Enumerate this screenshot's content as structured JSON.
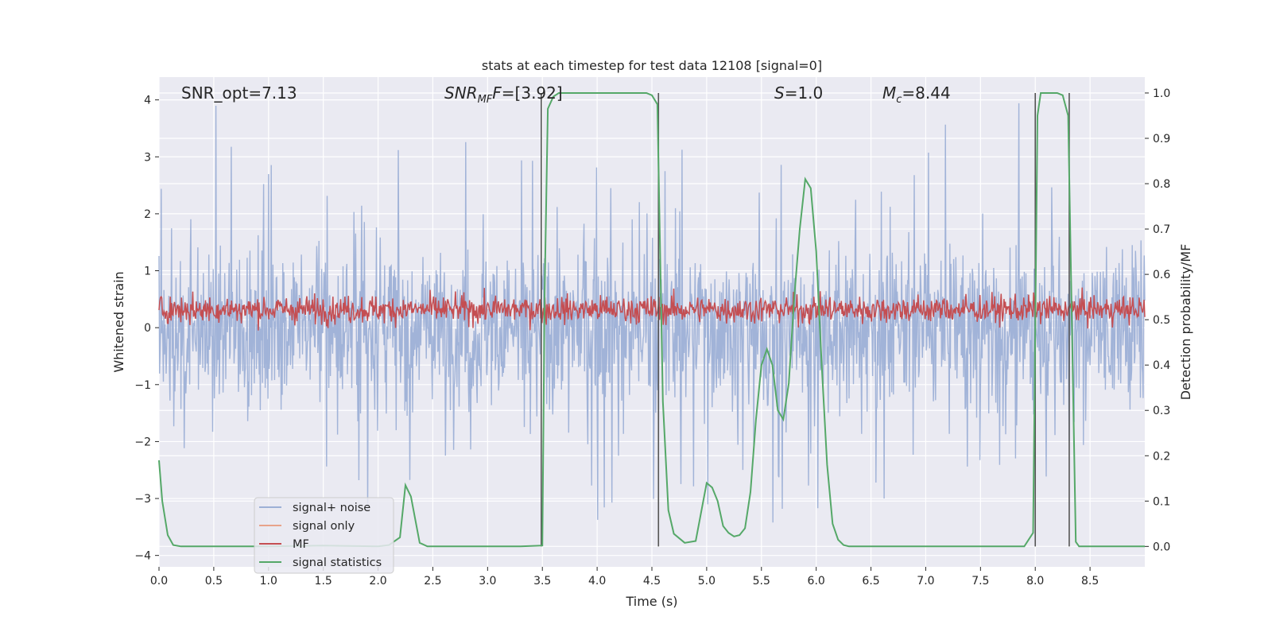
{
  "chart_data": {
    "type": "line",
    "title": "stats at each timestep for test data 12108 [signal=0]",
    "xlabel": "Time (s)",
    "ylabel": "Whitened strain",
    "y2label": "Detection probability/MF",
    "xlim": [
      0.0,
      9.0
    ],
    "ylim": [
      -4.2,
      4.4
    ],
    "y2lim": [
      -0.045,
      1.035
    ],
    "xticks": [
      0.0,
      0.5,
      1.0,
      1.5,
      2.0,
      2.5,
      3.0,
      3.5,
      4.0,
      4.5,
      5.0,
      5.5,
      6.0,
      6.5,
      7.0,
      7.5,
      8.0,
      8.5
    ],
    "xtick_labels": [
      "0.0",
      "0.5",
      "1.0",
      "1.5",
      "2.0",
      "2.5",
      "3.0",
      "3.5",
      "4.0",
      "4.5",
      "5.0",
      "5.5",
      "6.0",
      "6.5",
      "7.0",
      "7.5",
      "8.0",
      "8.5"
    ],
    "yticks": [
      -4,
      -3,
      -2,
      -1,
      0,
      1,
      2,
      3,
      4
    ],
    "ytick_labels": [
      "−4",
      "−3",
      "−2",
      "−1",
      "0",
      "1",
      "2",
      "3",
      "4"
    ],
    "y2ticks": [
      0.0,
      0.1,
      0.2,
      0.3,
      0.4,
      0.5,
      0.6,
      0.7,
      0.8,
      0.9,
      1.0
    ],
    "y2tick_labels": [
      "0.0",
      "0.1",
      "0.2",
      "0.3",
      "0.4",
      "0.5",
      "0.6",
      "0.7",
      "0.8",
      "0.9",
      "1.0"
    ],
    "annotations": {
      "snr_opt": "SNR_opt=7.13",
      "snr_mf_main": "SNR",
      "snr_mf_sub": "MF",
      "snr_mf_rest": "=[3.92]",
      "s_main": "S",
      "s_rest": "=1.0",
      "mc_main": "M",
      "mc_sub": "c",
      "mc_rest": "=8.44"
    },
    "series": [
      {
        "name": "signal+ noise",
        "color": "#9db0d6",
        "axis": "left",
        "description": "whitened strain, dense noisy trace spanning roughly -3.8 to 4",
        "envelope": {
          "typical_low": -1.5,
          "typical_high": 1.7,
          "peak_low": -3.8,
          "peak_high": 4.0
        }
      },
      {
        "name": "signal only",
        "color": "#e8a38a",
        "axis": "left",
        "description": "flat, not visible",
        "values": []
      },
      {
        "name": "MF",
        "color": "#c44e52",
        "axis": "left",
        "description": "matched filter output, noisy band roughly 0 to 0.9",
        "envelope": {
          "typical_low": 0.1,
          "typical_high": 0.6,
          "peak_low": -0.05,
          "peak_high": 0.95
        }
      },
      {
        "name": "signal statistics",
        "color": "#55a868",
        "axis": "right",
        "x": [
          0.0,
          0.03,
          0.08,
          0.13,
          0.2,
          0.3,
          0.5,
          1.0,
          1.5,
          2.0,
          2.1,
          2.2,
          2.25,
          2.3,
          2.38,
          2.45,
          2.5,
          3.0,
          3.3,
          3.5,
          3.52,
          3.55,
          3.6,
          3.65,
          3.7,
          4.0,
          4.3,
          4.45,
          4.5,
          4.55,
          4.6,
          4.65,
          4.7,
          4.8,
          4.9,
          5.0,
          5.05,
          5.1,
          5.15,
          5.2,
          5.25,
          5.3,
          5.35,
          5.4,
          5.45,
          5.5,
          5.55,
          5.6,
          5.65,
          5.7,
          5.75,
          5.8,
          5.85,
          5.9,
          5.95,
          6.0,
          6.05,
          6.1,
          6.15,
          6.2,
          6.25,
          6.3,
          6.35,
          6.4,
          6.5,
          7.0,
          7.5,
          7.9,
          7.98,
          8.02,
          8.05,
          8.1,
          8.2,
          8.25,
          8.3,
          8.33,
          8.37,
          8.4,
          8.5,
          9.0
        ],
        "values": [
          0.19,
          0.1,
          0.025,
          0.003,
          0.0,
          0.0,
          0.0,
          0.0,
          0.002,
          0.0,
          0.003,
          0.02,
          0.135,
          0.11,
          0.008,
          0.0,
          0.0,
          0.0,
          0.0,
          0.002,
          0.55,
          0.965,
          0.992,
          1.0,
          1.0,
          1.0,
          1.0,
          1.0,
          0.995,
          0.975,
          0.32,
          0.08,
          0.028,
          0.008,
          0.012,
          0.14,
          0.13,
          0.1,
          0.045,
          0.03,
          0.022,
          0.025,
          0.04,
          0.12,
          0.28,
          0.4,
          0.435,
          0.4,
          0.3,
          0.28,
          0.36,
          0.55,
          0.7,
          0.81,
          0.79,
          0.65,
          0.4,
          0.18,
          0.05,
          0.015,
          0.003,
          0.0,
          0.0,
          0.0,
          0.0,
          0.0,
          0.0,
          0.0,
          0.03,
          0.95,
          1.0,
          1.0,
          1.0,
          0.995,
          0.95,
          0.55,
          0.01,
          0.0,
          0.0,
          0.0
        ]
      }
    ],
    "vlines": [
      {
        "x": 3.49,
        "y_from": 0.0,
        "y_to": 1.0,
        "color": "#555555"
      },
      {
        "x": 4.56,
        "y_from": 0.0,
        "y_to": 1.0,
        "color": "#555555"
      },
      {
        "x": 8.0,
        "y_from": 0.0,
        "y_to": 1.0,
        "color": "#555555"
      },
      {
        "x": 8.31,
        "y_from": 0.0,
        "y_to": 1.0,
        "color": "#555555"
      }
    ],
    "legend": {
      "position": "lower-left",
      "entries": [
        {
          "label": "signal+ noise",
          "color": "#9db0d6"
        },
        {
          "label": "signal only",
          "color": "#e8a38a"
        },
        {
          "label": "MF",
          "color": "#c44e52"
        },
        {
          "label": "signal statistics",
          "color": "#55a868"
        }
      ]
    },
    "grid": true,
    "background": "#eaeaf2"
  }
}
